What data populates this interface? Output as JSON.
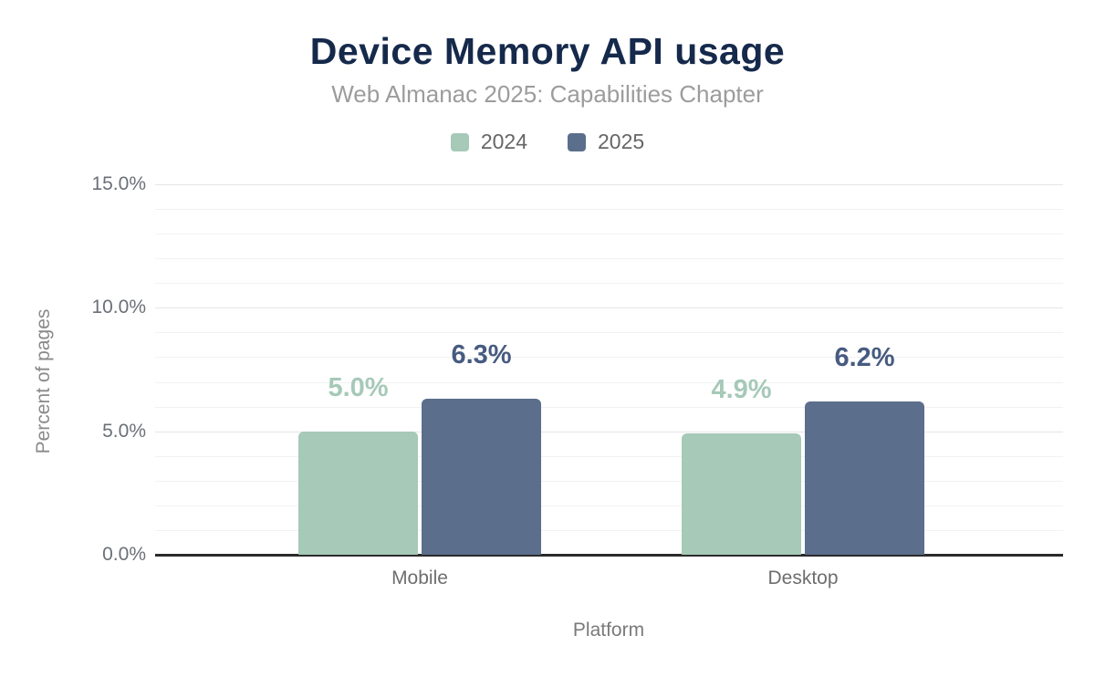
{
  "chart_data": {
    "type": "bar",
    "title": "Device Memory API usage",
    "subtitle": "Web Almanac 2025: Capabilities Chapter",
    "categories": [
      "Mobile",
      "Desktop"
    ],
    "series": [
      {
        "name": "2024",
        "color": "#a6c9b8",
        "label_color": "#a6c9b8",
        "values": [
          5.0,
          4.9
        ],
        "labels": [
          "5.0%",
          "4.9%"
        ]
      },
      {
        "name": "2025",
        "color": "#5b6e8c",
        "label_color": "#475b80",
        "values": [
          6.3,
          6.2
        ],
        "labels": [
          "6.3%",
          "6.2%"
        ]
      }
    ],
    "xlabel": "Platform",
    "ylabel": "Percent of pages",
    "ylim": [
      0,
      15
    ],
    "yticks": [
      0,
      5,
      10,
      15
    ],
    "ytick_labels": [
      "0.0%",
      "5.0%",
      "10.0%",
      "15.0%"
    ],
    "minor_grid_step": 1,
    "grid": true,
    "legend_position": "top"
  },
  "colors": {
    "background": "#ffffff",
    "title": "#15294b",
    "subtitle": "#9c9c9c",
    "axis_line": "#2b2b2b",
    "grid_minor": "#f2f2f2",
    "grid_major": "#e5e5e5",
    "tick_text": "#6b7077",
    "axis_title_text": "#8a8a8a",
    "legend_text": "#666666"
  }
}
